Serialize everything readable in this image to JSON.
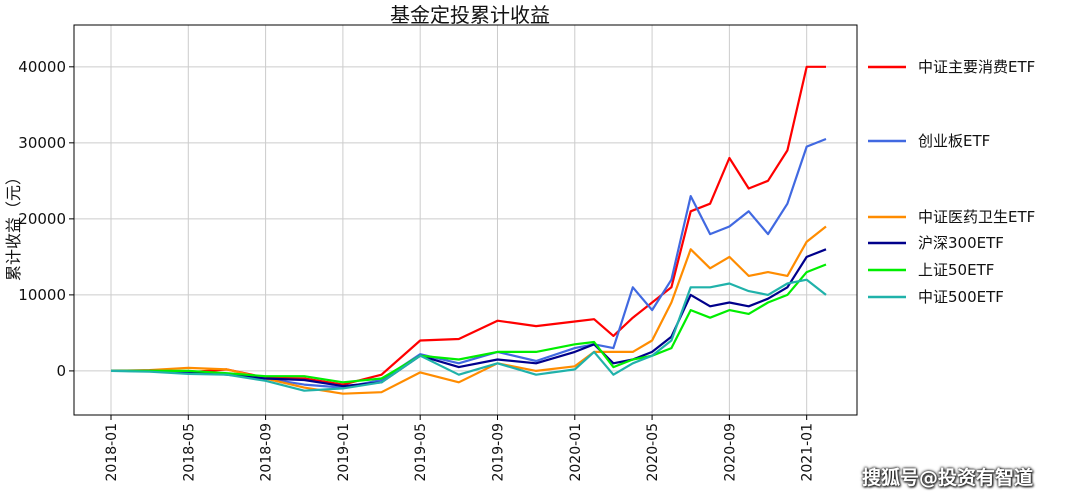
{
  "chart_data": {
    "type": "line",
    "title": "基金定投累计收益",
    "ylabel": "累计收益（元）",
    "xlabel": "",
    "ylim": [
      -5800,
      45500
    ],
    "yticks": [
      0,
      10000,
      20000,
      30000,
      40000
    ],
    "xtick_labels": [
      "2018-01",
      "2018-05",
      "2018-09",
      "2019-01",
      "2019-05",
      "2019-09",
      "2020-01",
      "2020-05",
      "2020-09",
      "2021-01"
    ],
    "grid": true,
    "legend_position": "right",
    "x": [
      "2018-01",
      "2018-03",
      "2018-05",
      "2018-07",
      "2018-09",
      "2018-11",
      "2019-01",
      "2019-03",
      "2019-05",
      "2019-07",
      "2019-09",
      "2019-11",
      "2020-01",
      "2020-02",
      "2020-03",
      "2020-04",
      "2020-05",
      "2020-06",
      "2020-07",
      "2020-08",
      "2020-09",
      "2020-10",
      "2020-11",
      "2020-12",
      "2021-01",
      "2021-02"
    ],
    "series": [
      {
        "name": "中证主要消费ETF",
        "color": "#ff0000",
        "values": [
          0,
          0,
          -200,
          200,
          -900,
          -1000,
          -1800,
          -500,
          4000,
          4200,
          6600,
          5900,
          6500,
          6800,
          4600,
          7000,
          9000,
          11000,
          21000,
          22000,
          28000,
          24000,
          25000,
          29000,
          40000,
          40000
        ]
      },
      {
        "name": "创业板ETF",
        "color": "#4169e1",
        "values": [
          0,
          0,
          -300,
          -400,
          -1000,
          -1800,
          -2200,
          -1200,
          2200,
          1000,
          2500,
          1300,
          3000,
          3500,
          3000,
          11000,
          8000,
          12000,
          23000,
          18000,
          19000,
          21000,
          18000,
          22000,
          29500,
          30500
        ]
      },
      {
        "name": "中证医药卫生ETF",
        "color": "#ff8c00",
        "values": [
          0,
          100,
          400,
          200,
          -1000,
          -2200,
          -3000,
          -2800,
          -200,
          -1500,
          1000,
          0,
          600,
          2500,
          2500,
          2500,
          4000,
          9000,
          16000,
          13500,
          15000,
          12500,
          13000,
          12500,
          17000,
          19000
        ]
      },
      {
        "name": "沪深300ETF",
        "color": "#00008b",
        "values": [
          0,
          0,
          -100,
          -500,
          -1000,
          -1200,
          -2000,
          -1500,
          2000,
          500,
          1500,
          1000,
          2500,
          3500,
          1000,
          1500,
          2500,
          4500,
          10000,
          8500,
          9000,
          8500,
          9500,
          11000,
          15000,
          16000
        ]
      },
      {
        "name": "上证50ETF",
        "color": "#00ee00",
        "values": [
          0,
          0,
          0,
          -300,
          -700,
          -700,
          -1500,
          -1000,
          2000,
          1500,
          2500,
          2500,
          3500,
          3800,
          500,
          1500,
          2000,
          3000,
          8000,
          7000,
          8000,
          7500,
          9000,
          10000,
          13000,
          14000
        ]
      },
      {
        "name": "中证500ETF",
        "color": "#20b2aa",
        "values": [
          0,
          -100,
          -400,
          -500,
          -1300,
          -2600,
          -2300,
          -1500,
          2000,
          -500,
          1000,
          -500,
          200,
          2500,
          -500,
          1000,
          2000,
          4000,
          11000,
          11000,
          11500,
          10500,
          10000,
          11500,
          12000,
          10000
        ]
      }
    ]
  },
  "watermark": "搜狐号@投资有智道"
}
